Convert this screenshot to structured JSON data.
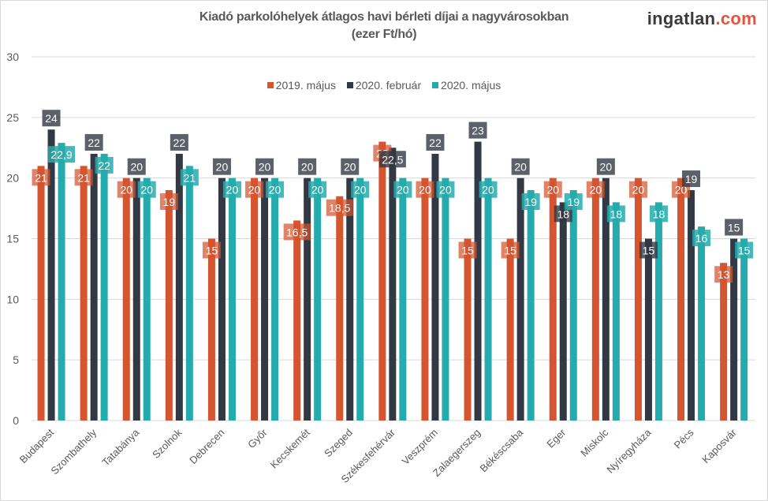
{
  "chart_data": {
    "type": "bar",
    "title": "Kiadó parkolóhelyek átlagos havi bérleti díjai a nagyvárosokban",
    "subtitle": "(ezer Ft/hó)",
    "xlabel": "",
    "ylabel": "",
    "ylim": [
      0,
      30
    ],
    "yticks": [
      "0",
      "5",
      "10",
      "15",
      "20",
      "25",
      "30"
    ],
    "grid": true,
    "legend_position": "top",
    "categories": [
      "Budapest",
      "Szombathely",
      "Tatabánya",
      "Szolnok",
      "Debrecen",
      "Győr",
      "Kecskemét",
      "Szeged",
      "Székesfehérvár",
      "Veszprém",
      "Zalaegerszeg",
      "Békéscsaba",
      "Eger",
      "Miskolc",
      "Nyíregyháza",
      "Pécs",
      "Kaposvár"
    ],
    "series": [
      {
        "name": "2019. május",
        "color": "#D4552F",
        "values": [
          21,
          21,
          20,
          19,
          15,
          20,
          16.5,
          18.5,
          23,
          20,
          15,
          15,
          20,
          20,
          20,
          20,
          13
        ],
        "labels": [
          "21",
          "21",
          "20",
          "19",
          "15",
          "20",
          "16,5",
          "18,5",
          "23",
          "20",
          "15",
          "15",
          "20",
          "20",
          "20",
          "20",
          "13"
        ]
      },
      {
        "name": "2020. február",
        "color": "#323844",
        "values": [
          24,
          22,
          20,
          22,
          20,
          20,
          20,
          20,
          22.5,
          22,
          23,
          20,
          18,
          20,
          15,
          19,
          15
        ],
        "labels": [
          "24",
          "22",
          "20",
          "22",
          "20",
          "20",
          "20",
          "20",
          "22,5",
          "22",
          "23",
          "20",
          "18",
          "20",
          "15",
          "19",
          "15"
        ]
      },
      {
        "name": "2020. május",
        "color": "#25ABAD",
        "values": [
          22.9,
          22,
          20,
          21,
          20,
          20,
          20,
          20,
          20,
          20,
          20,
          19,
          19,
          18,
          18,
          16,
          15
        ],
        "labels": [
          "22,9",
          "22",
          "20",
          "21",
          "20",
          "20",
          "20",
          "20",
          "20",
          "20",
          "20",
          "19",
          "19",
          "18",
          "18",
          "16",
          "15"
        ]
      }
    ]
  },
  "logo": {
    "text": "ingatlan",
    "suffix": ".com"
  }
}
